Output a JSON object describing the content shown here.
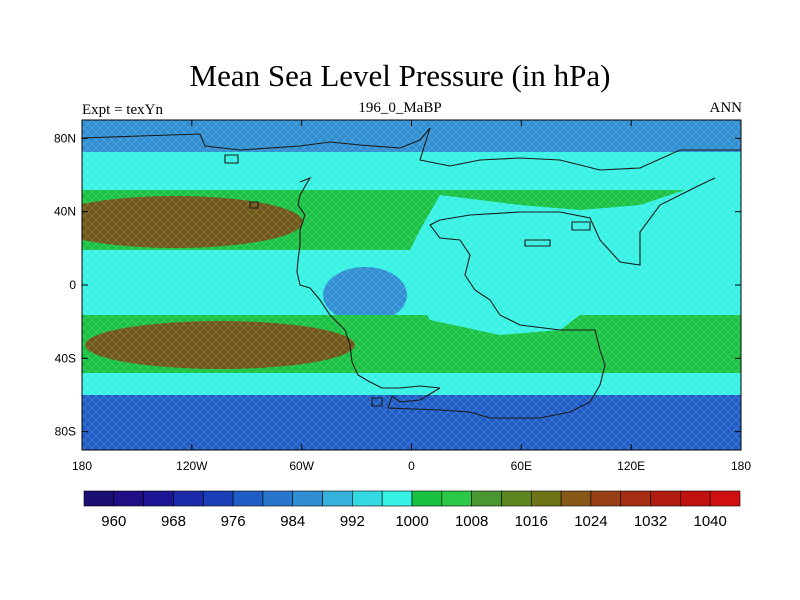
{
  "title": "Mean Sea Level Pressure (in hPa)",
  "left_label": "Expt = texYn",
  "center_label": "196_0_MaBP",
  "right_label": "ANN",
  "map": {
    "x_ticks": [
      {
        "value": -180,
        "label": "180"
      },
      {
        "value": -120,
        "label": "120W"
      },
      {
        "value": -60,
        "label": "60W"
      },
      {
        "value": 0,
        "label": "0"
      },
      {
        "value": 60,
        "label": "60E"
      },
      {
        "value": 120,
        "label": "120E"
      },
      {
        "value": 180,
        "label": "180"
      }
    ],
    "y_ticks": [
      {
        "value": 80,
        "label": "80N"
      },
      {
        "value": 40,
        "label": "40N"
      },
      {
        "value": 0,
        "label": "0"
      },
      {
        "value": -40,
        "label": "40S"
      },
      {
        "value": -80,
        "label": "80S"
      }
    ],
    "lon_range": [
      -180,
      180
    ],
    "lat_range": [
      -90,
      90
    ]
  },
  "colorbar": {
    "min": 956,
    "step": 4,
    "colors": [
      "#1a0f72",
      "#200f84",
      "#1d1496",
      "#1a2aa8",
      "#1a3fb8",
      "#1f5dc6",
      "#2a75cc",
      "#2f8fd2",
      "#35b2dc",
      "#33d9e0",
      "#36f2e4",
      "#19c243",
      "#2bc947",
      "#4a9630",
      "#5c8720",
      "#6f7318",
      "#875818",
      "#974015",
      "#a52e12",
      "#b01d10",
      "#c01010",
      "#d01010"
    ],
    "labels": [
      {
        "value": 960,
        "label": "960"
      },
      {
        "value": 968,
        "label": "968"
      },
      {
        "value": 976,
        "label": "976"
      },
      {
        "value": 984,
        "label": "984"
      },
      {
        "value": 992,
        "label": "992"
      },
      {
        "value": 1000,
        "label": "1000"
      },
      {
        "value": 1008,
        "label": "1008"
      },
      {
        "value": 1016,
        "label": "1016"
      },
      {
        "value": 1024,
        "label": "1024"
      },
      {
        "value": 1032,
        "label": "1032"
      },
      {
        "value": 1040,
        "label": "1040"
      }
    ]
  },
  "colors": {
    "deep_blue": "#1f5dc6",
    "mid_blue": "#2f8fd2",
    "cyan": "#36f2e4",
    "green": "#19c243",
    "olive": "#5c8720",
    "brown": "#6f5718",
    "coast": "#1a1a1a"
  }
}
